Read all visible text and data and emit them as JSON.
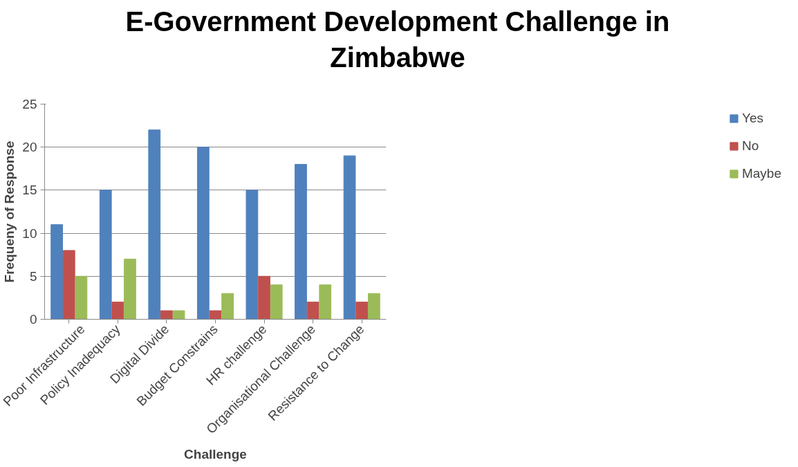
{
  "chart_data": {
    "type": "bar",
    "title": "E-Government Development Challenge in Zimbabwe",
    "xlabel": "Challenge",
    "ylabel": "Frequeny of Response",
    "categories": [
      "Poor Infrastructure",
      "Policy Inadequacy",
      "Digital Divide",
      "Budget Constrains",
      "HR challenge",
      "Organisational Challenge",
      "Resistance to Change"
    ],
    "series": [
      {
        "name": "Yes",
        "color": "#4f81bd",
        "values": [
          11,
          15,
          22,
          20,
          15,
          18,
          19
        ]
      },
      {
        "name": "No",
        "color": "#c0504d",
        "values": [
          8,
          2,
          1,
          1,
          5,
          2,
          2
        ]
      },
      {
        "name": "Maybe",
        "color": "#9bbb59",
        "values": [
          5,
          7,
          1,
          3,
          4,
          4,
          3
        ]
      }
    ],
    "ylim": [
      0,
      25
    ],
    "yticks": [
      0,
      5,
      10,
      15,
      20,
      25
    ],
    "grid": "y",
    "legend": "right"
  }
}
